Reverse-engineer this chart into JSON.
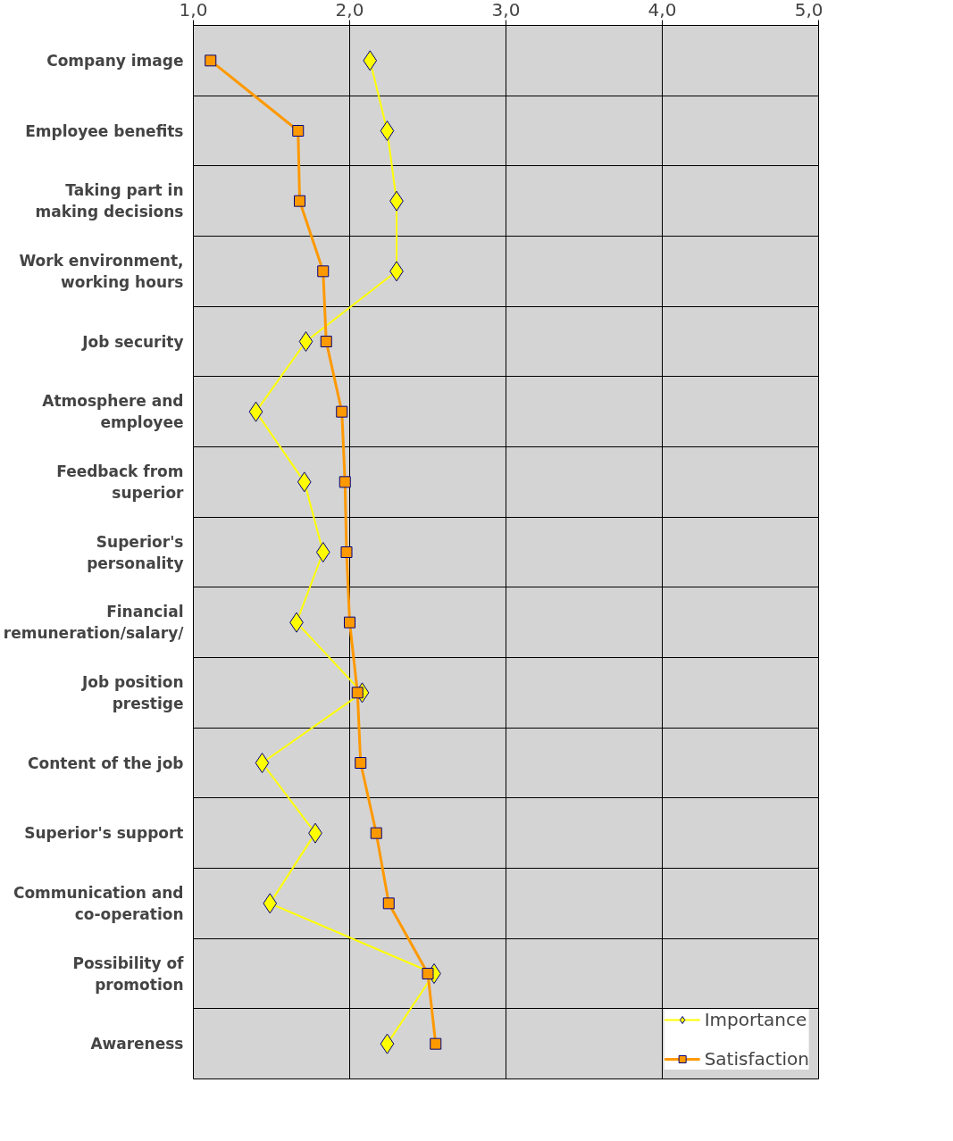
{
  "chart_data": {
    "type": "line",
    "orientation": "horizontal",
    "categories": [
      "Company image",
      "Employee benefits",
      "Taking part in making decisions",
      "Work environment, working hours",
      "Job security",
      "Atmosphere and employee",
      "Feedback from superior",
      "Superior's personality",
      "Financial remuneration/salary/",
      "Job position prestige",
      "Content of the job",
      "Superior's support",
      "Communication and co-operation",
      "Possibility of promotion",
      "Awareness"
    ],
    "series": [
      {
        "name": "Importance",
        "color": "#ffff00",
        "marker": "diamond",
        "values": [
          2.13,
          2.24,
          2.3,
          2.3,
          1.72,
          1.4,
          1.71,
          1.83,
          1.66,
          2.08,
          1.44,
          1.78,
          1.49,
          2.54,
          2.24
        ]
      },
      {
        "name": "Satisfaction",
        "color": "#ff9900",
        "marker": "square",
        "values": [
          1.11,
          1.67,
          1.68,
          1.83,
          1.85,
          1.95,
          1.97,
          1.98,
          2.0,
          2.05,
          2.07,
          2.17,
          2.25,
          2.5,
          2.55
        ]
      }
    ],
    "xlim": [
      1,
      5
    ],
    "xticks": [
      {
        "value": 1,
        "label": "1,0"
      },
      {
        "value": 2,
        "label": "2,0"
      },
      {
        "value": 3,
        "label": "3,0"
      },
      {
        "value": 4,
        "label": "4,0"
      },
      {
        "value": 5,
        "label": "5,0"
      }
    ],
    "grid": true,
    "legend": "bottom right"
  }
}
